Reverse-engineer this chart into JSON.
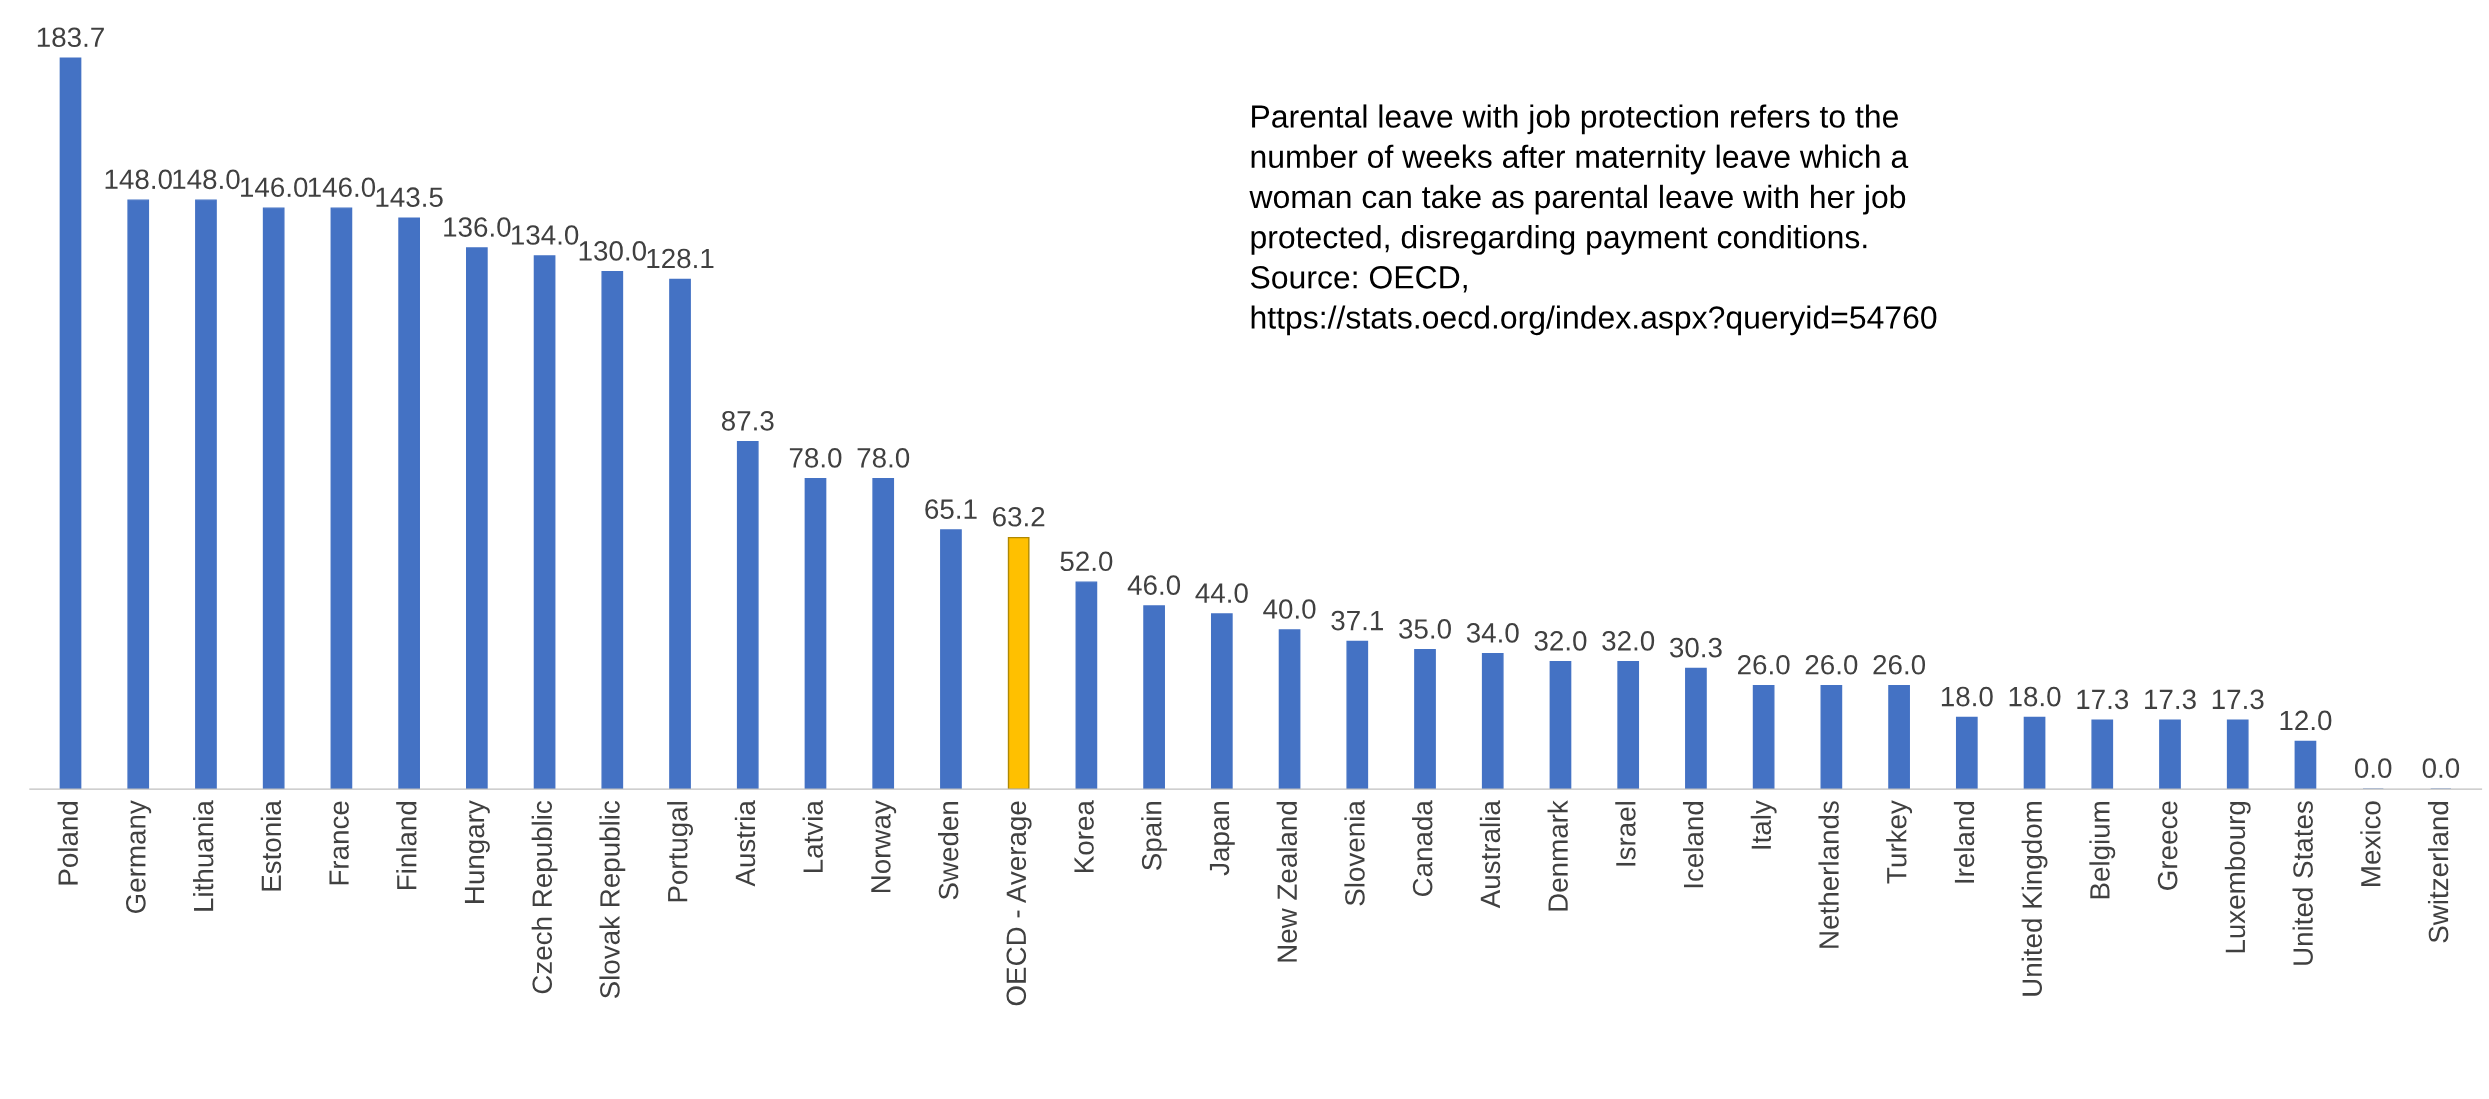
{
  "chart_data": {
    "type": "bar",
    "categories": [
      "Poland",
      "Germany",
      "Lithuania",
      "Estonia",
      "France",
      "Finland",
      "Hungary",
      "Czech Republic",
      "Slovak Republic",
      "Portugal",
      "Austria",
      "Latvia",
      "Norway",
      "Sweden",
      "OECD - Average",
      "Korea",
      "Spain",
      "Japan",
      "New Zealand",
      "Slovenia",
      "Canada",
      "Australia",
      "Denmark",
      "Israel",
      "Iceland",
      "Italy",
      "Netherlands",
      "Turkey",
      "Ireland",
      "United Kingdom",
      "Belgium",
      "Greece",
      "Luxembourg",
      "United States",
      "Mexico",
      "Switzerland"
    ],
    "values": [
      183.7,
      148.0,
      148.0,
      146.0,
      146.0,
      143.5,
      136.0,
      134.0,
      130.0,
      128.1,
      87.3,
      78.0,
      78.0,
      65.1,
      63.2,
      52.0,
      46.0,
      44.0,
      40.0,
      37.1,
      35.0,
      34.0,
      32.0,
      32.0,
      30.3,
      26.0,
      26.0,
      26.0,
      18.0,
      18.0,
      17.3,
      17.3,
      17.3,
      12.0,
      0.0,
      0.0
    ],
    "colors": [
      "#4472c4",
      "#4472c4",
      "#4472c4",
      "#4472c4",
      "#4472c4",
      "#4472c4",
      "#4472c4",
      "#4472c4",
      "#4472c4",
      "#4472c4",
      "#4472c4",
      "#4472c4",
      "#4472c4",
      "#4472c4",
      "#ffc000",
      "#4472c4",
      "#4472c4",
      "#4472c4",
      "#4472c4",
      "#4472c4",
      "#4472c4",
      "#4472c4",
      "#4472c4",
      "#4472c4",
      "#4472c4",
      "#4472c4",
      "#4472c4",
      "#4472c4",
      "#4472c4",
      "#4472c4",
      "#4472c4",
      "#4472c4",
      "#4472c4",
      "#4472c4",
      "#4472c4",
      "#4472c4"
    ],
    "value_labels": [
      "183.7",
      "148.0",
      "148.0",
      "146.0",
      "146.0",
      "143.5",
      "136.0",
      "134.0",
      "130.0",
      "128.1",
      "87.3",
      "78.0",
      "78.0",
      "65.1",
      "63.2",
      "52.0",
      "46.0",
      "44.0",
      "40.0",
      "37.1",
      "35.0",
      "34.0",
      "32.0",
      "32.0",
      "30.3",
      "26.0",
      "26.0",
      "26.0",
      "18.0",
      "18.0",
      "17.3",
      "17.3",
      "17.3",
      "12.0",
      "0.0",
      "0.0"
    ],
    "grid": false,
    "annotations": [
      "Parental leave with job protection refers to the\nnumber of weeks after maternity leave which a\nwoman can take as parental leave with her job\nprotected, disregarding payment conditions.\nSource: OECD,\nhttps://stats.oecd.org/index.aspx?queryid=54760"
    ]
  }
}
